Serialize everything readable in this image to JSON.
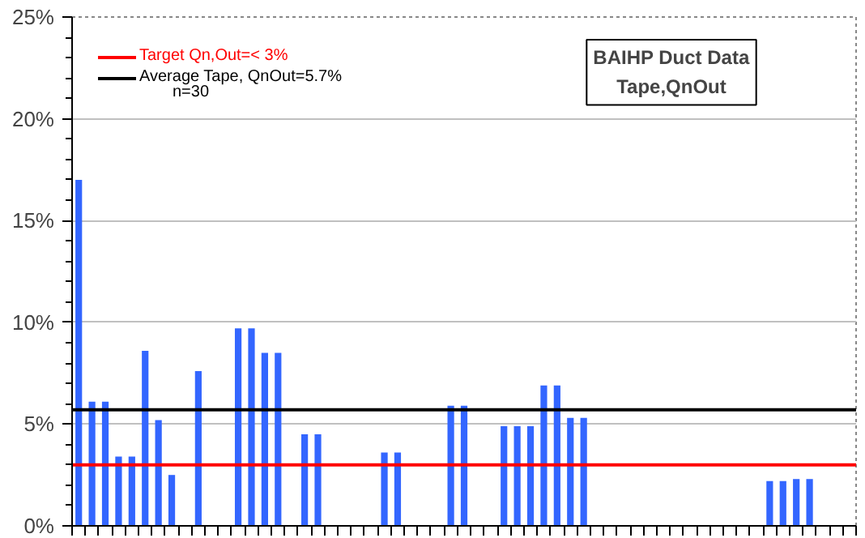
{
  "chart_data": {
    "type": "bar",
    "title": "BAIHP Duct Data\nTape,QnOut",
    "categories": [
      null,
      null,
      null,
      null,
      null,
      null,
      null,
      null,
      null,
      null,
      null,
      null,
      null,
      null,
      null,
      null,
      null,
      null,
      null,
      null,
      null,
      null,
      null,
      null,
      null,
      null,
      null,
      null,
      null,
      null,
      null,
      null,
      null,
      null,
      null,
      null,
      null,
      null,
      null,
      null,
      null,
      null,
      null,
      null,
      null,
      null,
      null,
      null,
      null,
      null,
      null,
      null,
      null,
      null,
      null,
      null,
      null,
      null,
      null
    ],
    "values": [
      17.0,
      6.1,
      6.1,
      3.4,
      3.4,
      8.6,
      5.2,
      2.5,
      null,
      7.6,
      null,
      null,
      9.7,
      9.7,
      8.5,
      8.5,
      null,
      4.5,
      4.5,
      null,
      null,
      null,
      null,
      3.6,
      3.6,
      null,
      null,
      null,
      5.9,
      5.9,
      null,
      null,
      4.9,
      4.9,
      4.9,
      6.9,
      6.9,
      5.3,
      5.3,
      null,
      null,
      null,
      null,
      null,
      null,
      null,
      null,
      null,
      null,
      null,
      null,
      null,
      2.2,
      2.2,
      2.3,
      2.3,
      null,
      null,
      null
    ],
    "color": "#3366ff",
    "ylim": [
      0,
      25
    ],
    "yticks": [
      {
        "value": 0,
        "label": "0%"
      },
      {
        "value": 5,
        "label": "5%"
      },
      {
        "value": 10,
        "label": "10%"
      },
      {
        "value": 15,
        "label": "15%"
      },
      {
        "value": 20,
        "label": "20%"
      },
      {
        "value": 25,
        "label": "25%"
      }
    ],
    "grid": "y",
    "tick_labels": "y",
    "legend": "top left",
    "ref_lines": [
      {
        "axis": "y",
        "value": 3,
        "label": "Target Qn,Out=< 3%",
        "color": "#ff0000"
      },
      {
        "axis": "y",
        "value": 5.7,
        "label": "Average Tape, QnOut=5.7%",
        "color": "#000000"
      }
    ],
    "annotations": [
      "n=30"
    ]
  }
}
